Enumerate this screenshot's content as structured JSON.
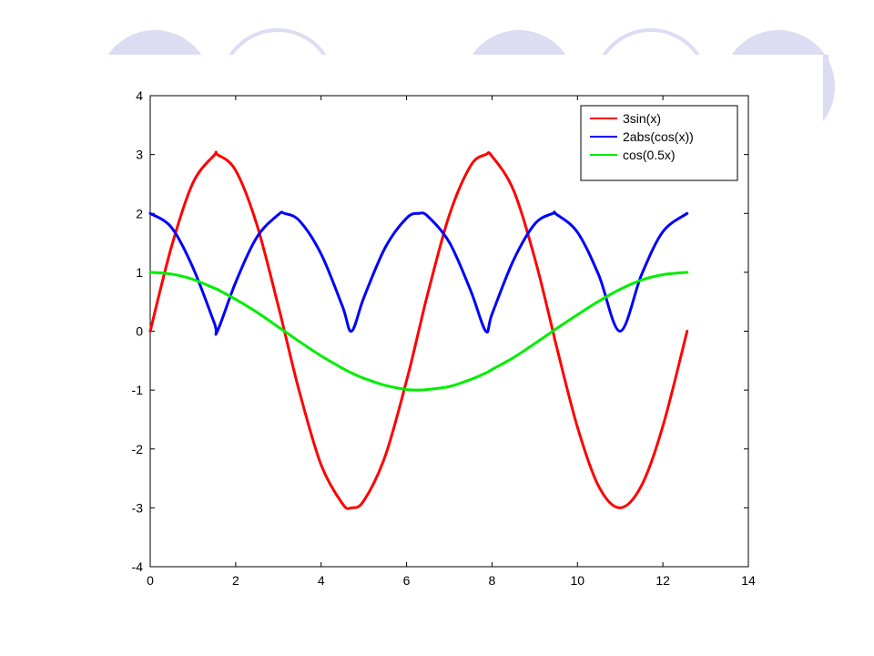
{
  "colors": {
    "decoration": "#dcdcf2",
    "axes": "#000000",
    "background": "#ffffff"
  },
  "chart_data": {
    "type": "line",
    "title": "",
    "xlabel": "",
    "ylabel": "",
    "xlim": [
      0,
      14
    ],
    "ylim": [
      -4,
      4
    ],
    "xticks": [
      0,
      2,
      4,
      6,
      8,
      10,
      12,
      14
    ],
    "yticks": [
      -4,
      -3,
      -2,
      -1,
      0,
      1,
      2,
      3,
      4
    ],
    "xtick_labels": [
      "0",
      "2",
      "4",
      "6",
      "8",
      "10",
      "12",
      "14"
    ],
    "ytick_labels": [
      "-4",
      "-3",
      "-2",
      "-1",
      "0",
      "1",
      "2",
      "3",
      "4"
    ],
    "grid": false,
    "legend_position": "top-right",
    "x": [
      0,
      0.5,
      1.0,
      1.5,
      1.571,
      2.0,
      2.5,
      3.0,
      3.142,
      3.5,
      4.0,
      4.5,
      4.712,
      5.0,
      5.5,
      6.0,
      6.283,
      6.5,
      7.0,
      7.5,
      7.854,
      8.0,
      8.5,
      9.0,
      9.425,
      9.5,
      10.0,
      10.5,
      10.996,
      11.5,
      12.0,
      12.566
    ],
    "series": [
      {
        "name": "3sin(x)",
        "color": "#ff0000",
        "values": [
          0,
          1.44,
          2.52,
          2.99,
          3.0,
          2.73,
          1.8,
          0.42,
          0,
          -1.05,
          -2.27,
          -2.93,
          -3.0,
          -2.88,
          -2.12,
          -0.84,
          0,
          0.65,
          1.97,
          2.81,
          3.0,
          2.97,
          2.4,
          1.24,
          0,
          -0.23,
          -1.63,
          -2.64,
          -3.0,
          -2.62,
          -1.61,
          0
        ]
      },
      {
        "name": "2abs(cos(x))",
        "color": "#0000ff",
        "values": [
          2.0,
          1.76,
          1.08,
          0.14,
          0,
          0.83,
          1.6,
          1.98,
          2.0,
          1.87,
          1.31,
          0.42,
          0,
          0.57,
          1.42,
          1.92,
          2.0,
          1.95,
          1.51,
          0.69,
          0,
          0.29,
          1.2,
          1.82,
          2.0,
          1.99,
          1.68,
          0.95,
          0,
          0.96,
          1.69,
          2.0
        ]
      },
      {
        "name": "cos(0.5x)",
        "color": "#00ee00",
        "values": [
          1.0,
          0.97,
          0.88,
          0.73,
          0.71,
          0.54,
          0.32,
          0.07,
          0,
          -0.18,
          -0.42,
          -0.63,
          -0.71,
          -0.8,
          -0.92,
          -0.99,
          -1.0,
          -0.99,
          -0.94,
          -0.82,
          -0.71,
          -0.65,
          -0.45,
          -0.21,
          0,
          0.04,
          0.28,
          0.51,
          0.71,
          0.87,
          0.96,
          1.0
        ]
      }
    ]
  }
}
